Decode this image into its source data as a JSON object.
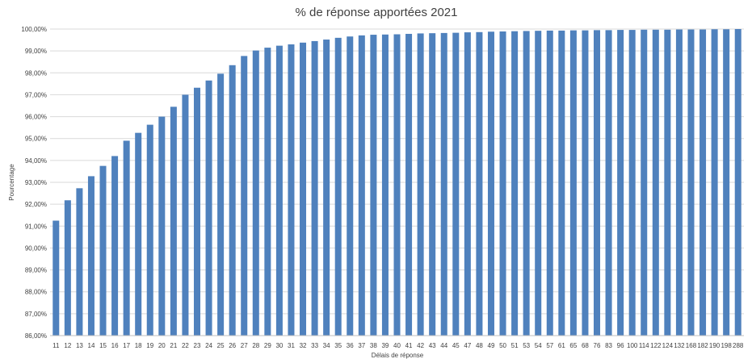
{
  "chart_data": {
    "type": "bar",
    "title": "% de réponse apportées 2021",
    "xlabel": "Délais de réponse",
    "ylabel": "Pourcentage",
    "ylim": [
      86,
      100
    ],
    "ytick_step": 1,
    "ytick_labels": [
      "86,00%",
      "87,00%",
      "88,00%",
      "89,00%",
      "90,00%",
      "91,00%",
      "92,00%",
      "93,00%",
      "94,00%",
      "95,00%",
      "96,00%",
      "97,00%",
      "98,00%",
      "99,00%",
      "100,00%"
    ],
    "grid": true,
    "legend": "none",
    "bar_color": "#4f81bd",
    "categories": [
      "11",
      "12",
      "13",
      "14",
      "15",
      "16",
      "17",
      "18",
      "19",
      "20",
      "21",
      "22",
      "23",
      "24",
      "25",
      "26",
      "27",
      "28",
      "29",
      "30",
      "31",
      "32",
      "33",
      "34",
      "35",
      "36",
      "37",
      "38",
      "39",
      "40",
      "41",
      "42",
      "43",
      "44",
      "45",
      "47",
      "48",
      "49",
      "50",
      "51",
      "53",
      "54",
      "57",
      "61",
      "65",
      "68",
      "76",
      "83",
      "96",
      "100",
      "114",
      "122",
      "124",
      "132",
      "168",
      "182",
      "190",
      "198",
      "288"
    ],
    "values": [
      91.25,
      92.18,
      92.73,
      93.28,
      93.75,
      94.2,
      94.9,
      95.26,
      95.63,
      96.0,
      96.45,
      97.0,
      97.32,
      97.65,
      97.96,
      98.35,
      98.77,
      99.02,
      99.15,
      99.24,
      99.3,
      99.38,
      99.45,
      99.52,
      99.6,
      99.66,
      99.71,
      99.74,
      99.75,
      99.76,
      99.78,
      99.8,
      99.81,
      99.82,
      99.83,
      99.85,
      99.86,
      99.88,
      99.89,
      99.9,
      99.91,
      99.92,
      99.93,
      99.93,
      99.94,
      99.94,
      99.95,
      99.95,
      99.96,
      99.96,
      99.97,
      99.97,
      99.97,
      99.98,
      99.98,
      99.98,
      99.99,
      99.99,
      100.0
    ]
  }
}
